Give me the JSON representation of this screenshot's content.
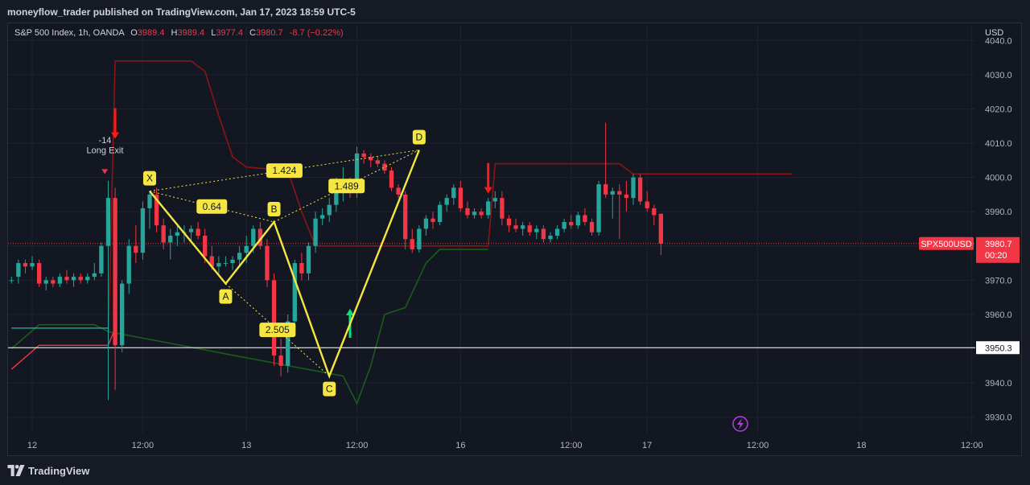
{
  "publisher_line": "moneyflow_trader published on TradingView.com, Jan 17, 2023 18:59 UTC-5",
  "legend": {
    "symbol": "S&P 500 Index, 1h, OANDA",
    "open_label": "O",
    "open_value": "3989.4",
    "high_label": "H",
    "high_value": "3989.4",
    "low_label": "L",
    "low_value": "3977.4",
    "close_label": "C",
    "close_value": "3980.7",
    "change": "-8.7 (−0.22%)"
  },
  "currency": "USD",
  "footer": {
    "brand": "TradingView"
  },
  "colors": {
    "up": "#26a69a",
    "down": "#f23645",
    "pattern": "#f5e642",
    "bg": "#131722",
    "grid": "#1f2330",
    "axis_text": "#b2b5be",
    "upper_band": "#8b1414",
    "lower_band": "#1a5c1a"
  },
  "icons": [
    "tradingview-logo-icon",
    "lightning-icon",
    "arrow-up-icon",
    "arrow-down-icon"
  ],
  "chart_data": {
    "type": "candlestick",
    "y_axis": {
      "ylim": [
        3925,
        4041
      ],
      "ticks": [
        "3930.0",
        "3940.0",
        "3950.0",
        "3960.0",
        "3970.0",
        "3980.0",
        "3990.0",
        "4000.0",
        "4010.0",
        "4020.0",
        "4030.0",
        "4040.0"
      ]
    },
    "x_axis": {
      "bars_visible": 140,
      "ticks": [
        {
          "label": "12",
          "bar": 3
        },
        {
          "label": "12:00",
          "bar": 19
        },
        {
          "label": "13",
          "bar": 34
        },
        {
          "label": "12:00",
          "bar": 50
        },
        {
          "label": "16",
          "bar": 65
        },
        {
          "label": "12:00",
          "bar": 81
        },
        {
          "label": "17",
          "bar": 92
        },
        {
          "label": "12:00",
          "bar": 108
        },
        {
          "label": "18",
          "bar": 123
        },
        {
          "label": "12:00",
          "bar": 139
        }
      ]
    },
    "candles": [
      [
        0,
        3970,
        3971,
        3969,
        3970
      ],
      [
        1,
        3971,
        3976,
        3969,
        3975
      ],
      [
        2,
        3975,
        3976,
        3972,
        3974
      ],
      [
        3,
        3974,
        3977,
        3973,
        3975
      ],
      [
        4,
        3975,
        3976,
        3968,
        3969
      ],
      [
        5,
        3969,
        3971,
        3967,
        3970
      ],
      [
        6,
        3970,
        3971,
        3968,
        3969
      ],
      [
        7,
        3969,
        3972,
        3968,
        3971
      ],
      [
        8,
        3971,
        3973,
        3969,
        3970
      ],
      [
        9,
        3970,
        3972,
        3968,
        3971
      ],
      [
        10,
        3971,
        3972,
        3969,
        3970
      ],
      [
        11,
        3970,
        3972,
        3969,
        3971
      ],
      [
        12,
        3971,
        3975,
        3970,
        3972
      ],
      [
        13,
        3972,
        3981,
        3971,
        3980
      ],
      [
        14,
        3980,
        3999,
        3935,
        3994
      ],
      [
        15,
        3994,
        3997,
        3938,
        3951
      ],
      [
        16,
        3951,
        3970,
        3949,
        3969
      ],
      [
        17,
        3969,
        3982,
        3966,
        3980
      ],
      [
        18,
        3980,
        3986,
        3975,
        3978
      ],
      [
        19,
        3978,
        3993,
        3976,
        3991
      ],
      [
        20,
        3991,
        3996,
        3985,
        3995
      ],
      [
        21,
        3995,
        3997,
        3984,
        3986
      ],
      [
        22,
        3986,
        3988,
        3979,
        3981
      ],
      [
        23,
        3981,
        3985,
        3976,
        3983
      ],
      [
        24,
        3983,
        3986,
        3980,
        3984
      ],
      [
        25,
        3984,
        3986,
        3981,
        3984
      ],
      [
        26,
        3984,
        3986,
        3981,
        3985
      ],
      [
        27,
        3985,
        3987,
        3982,
        3983
      ],
      [
        28,
        3983,
        3985,
        3975,
        3977
      ],
      [
        29,
        3977,
        3980,
        3973,
        3974
      ],
      [
        30,
        3974,
        3977,
        3972,
        3975
      ],
      [
        31,
        3975,
        3977,
        3974,
        3975
      ],
      [
        32,
        3975,
        3977,
        3973,
        3976
      ],
      [
        33,
        3976,
        3980,
        3974,
        3978
      ],
      [
        34,
        3978,
        3983,
        3975,
        3980
      ],
      [
        35,
        3980,
        3986,
        3978,
        3985
      ],
      [
        36,
        3985,
        3987,
        3979,
        3980
      ],
      [
        37,
        3980,
        3982,
        3968,
        3970
      ],
      [
        38,
        3970,
        3972,
        3945,
        3948
      ],
      [
        39,
        3948,
        3953,
        3942,
        3945
      ],
      [
        40,
        3945,
        3960,
        3943,
        3958
      ],
      [
        41,
        3958,
        3976,
        3956,
        3975
      ],
      [
        42,
        3975,
        3978,
        3970,
        3972
      ],
      [
        43,
        3972,
        3981,
        3970,
        3980
      ],
      [
        44,
        3980,
        3990,
        3978,
        3988
      ],
      [
        45,
        3988,
        3991,
        3986,
        3989
      ],
      [
        46,
        3989,
        3994,
        3987,
        3992
      ],
      [
        47,
        3992,
        4000,
        3990,
        3998
      ],
      [
        48,
        3998,
        4003,
        3993,
        3999
      ],
      [
        49,
        3999,
        4000,
        3994,
        3996
      ],
      [
        50,
        3996,
        4009,
        3994,
        4007
      ],
      [
        51,
        4007,
        4008,
        4004,
        4006
      ],
      [
        52,
        4006,
        4007,
        4003,
        4005
      ],
      [
        53,
        4005,
        4006,
        4003,
        4004
      ],
      [
        54,
        4004,
        4005,
        4001,
        4002
      ],
      [
        55,
        4002,
        4003,
        3996,
        3997
      ],
      [
        56,
        3997,
        3998,
        3994,
        3995
      ],
      [
        57,
        3995,
        3996,
        3979,
        3982
      ],
      [
        58,
        3982,
        3985,
        3978,
        3979
      ],
      [
        59,
        3979,
        3986,
        3978,
        3985
      ],
      [
        60,
        3985,
        3989,
        3983,
        3988
      ],
      [
        61,
        3988,
        3990,
        3985,
        3987
      ],
      [
        62,
        3987,
        3993,
        3986,
        3992
      ],
      [
        63,
        3992,
        3995,
        3990,
        3994
      ],
      [
        64,
        3994,
        3998,
        3992,
        3997
      ],
      [
        65,
        3997,
        3999,
        3990,
        3991
      ],
      [
        66,
        3991,
        3993,
        3988,
        3989
      ],
      [
        67,
        3989,
        3991,
        3988,
        3990
      ],
      [
        68,
        3990,
        3991,
        3988,
        3989
      ],
      [
        69,
        3989,
        3994,
        3988,
        3993
      ],
      [
        70,
        3993,
        3996,
        3991,
        3994
      ],
      [
        71,
        3994,
        3996,
        3986,
        3988
      ],
      [
        72,
        3988,
        3989,
        3984,
        3986
      ],
      [
        73,
        3986,
        3988,
        3984,
        3985
      ],
      [
        74,
        3985,
        3987,
        3983,
        3986
      ],
      [
        75,
        3986,
        3987,
        3983,
        3984
      ],
      [
        76,
        3984,
        3986,
        3982,
        3985
      ],
      [
        77,
        3985,
        3986,
        3981,
        3982
      ],
      [
        78,
        3982,
        3984,
        3981,
        3983
      ],
      [
        79,
        3983,
        3986,
        3982,
        3985
      ],
      [
        80,
        3985,
        3988,
        3984,
        3987
      ],
      [
        81,
        3987,
        3989,
        3985,
        3986
      ],
      [
        82,
        3986,
        3990,
        3985,
        3989
      ],
      [
        83,
        3989,
        3991,
        3986,
        3987
      ],
      [
        84,
        3987,
        3988,
        3983,
        3984
      ],
      [
        85,
        3984,
        3999,
        3983,
        3998
      ],
      [
        86,
        3998,
        4016,
        3994,
        3995
      ],
      [
        87,
        3995,
        3997,
        3988,
        3996
      ],
      [
        88,
        3996,
        3998,
        3982,
        3995
      ],
      [
        89,
        3995,
        3999,
        3990,
        3994
      ],
      [
        90,
        3994,
        4001,
        3992,
        4000
      ],
      [
        91,
        4000,
        4001,
        3992,
        3993
      ],
      [
        92,
        3993,
        3996,
        3990,
        3991
      ],
      [
        93,
        3991,
        3992,
        3986,
        3989
      ],
      [
        94,
        3989.4,
        3989.4,
        3977.4,
        3980.7
      ]
    ],
    "current_price": {
      "label": "SPX500USD",
      "value": "3980.7",
      "countdown": "00:20",
      "price": 3980.7
    },
    "horizontal_line": {
      "price": 3950.3,
      "label": "3950.3"
    },
    "harmonic_pattern": {
      "points": [
        {
          "label": "X",
          "bar": 20,
          "price": 3996
        },
        {
          "label": "A",
          "bar": 31,
          "price": 3969
        },
        {
          "label": "B",
          "bar": 38,
          "price": 3987
        },
        {
          "label": "C",
          "bar": 46,
          "price": 3942
        },
        {
          "label": "D",
          "bar": 59,
          "price": 4008
        }
      ],
      "ratios": [
        {
          "label": "0.64",
          "between": [
            "X",
            "B"
          ]
        },
        {
          "label": "2.505",
          "between": [
            "A",
            "C"
          ]
        },
        {
          "label": "1.489",
          "between": [
            "B",
            "D"
          ]
        },
        {
          "label": "1.424",
          "between": [
            "X",
            "D"
          ]
        }
      ]
    },
    "signals": [
      {
        "type": "sell",
        "bar": 15,
        "price": 4016
      },
      {
        "type": "buy",
        "bar": 49,
        "price": 3956
      },
      {
        "type": "sell",
        "bar": 69,
        "price": 4000
      }
    ],
    "annotations": [
      {
        "text": "-14",
        "bar": 14,
        "price": 4011
      },
      {
        "text": "Long Exit",
        "bar": 14,
        "price": 4008
      }
    ],
    "upper_band": [
      [
        14,
        3950
      ],
      [
        15,
        4034
      ],
      [
        26,
        4034
      ],
      [
        28,
        4031
      ],
      [
        30,
        4018
      ],
      [
        32,
        4006
      ],
      [
        34,
        4003
      ],
      [
        40,
        4002
      ],
      [
        42,
        3990
      ],
      [
        44,
        3980
      ],
      [
        49,
        3980
      ],
      [
        58,
        3980
      ],
      [
        59,
        3980
      ],
      [
        69,
        3980
      ],
      [
        70,
        4004
      ],
      [
        88,
        4004
      ],
      [
        90,
        4001
      ],
      [
        94,
        4001
      ],
      [
        113,
        4001
      ]
    ],
    "lower_band": [
      [
        0,
        3950
      ],
      [
        4,
        3957
      ],
      [
        12,
        3957
      ],
      [
        14,
        3955
      ],
      [
        48,
        3942
      ],
      [
        50,
        3934
      ],
      [
        52,
        3945
      ],
      [
        54,
        3960
      ],
      [
        57,
        3962
      ],
      [
        60,
        3975
      ],
      [
        62,
        3979
      ],
      [
        69,
        3979
      ]
    ],
    "left_lines": [
      {
        "color": "#f23645",
        "points": [
          [
            0,
            3944
          ],
          [
            4,
            3951
          ],
          [
            14,
            3951
          ],
          [
            15,
            3956
          ]
        ]
      },
      {
        "color": "#26a69a",
        "points": [
          [
            0,
            3956
          ],
          [
            14,
            3956
          ]
        ]
      }
    ]
  }
}
